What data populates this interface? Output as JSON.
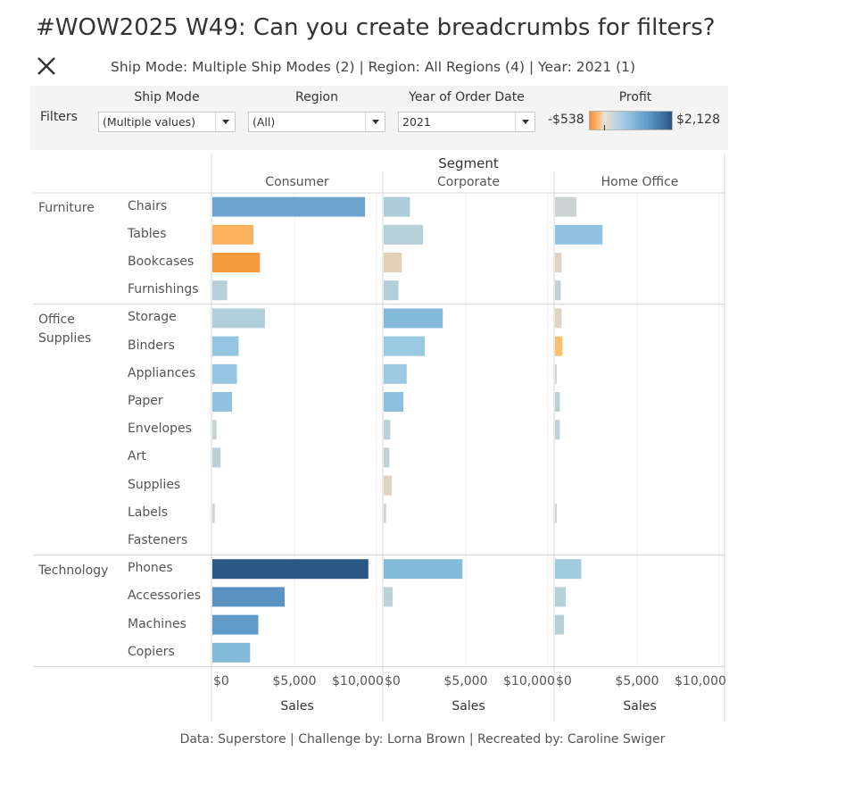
{
  "title": "#WOW2025 W49: Can you create breadcrumbs for filters?",
  "breadcrumb": "Ship Mode: Multiple Ship Modes (2) | Region: All Regions (4) | Year: 2021 (1)",
  "filters": {
    "label": "Filters",
    "ship_mode": {
      "label": "Ship Mode",
      "value": "(Multiple values)"
    },
    "region": {
      "label": "Region",
      "value": "(All)"
    },
    "year": {
      "label": "Year of Order Date",
      "value": "2021"
    },
    "profit": {
      "label": "Profit",
      "min_label": "-$538",
      "max_label": "$2,128"
    }
  },
  "colors": {
    "negative": "#f28e2b",
    "neutral": "#ddd5c8",
    "positive": "#2a5885",
    "background": "#f4f4f4"
  },
  "footer": "Data: Superstore | Challenge by: Lorna Brown | Recreated by: Caroline Swiger",
  "chart_data": {
    "type": "bar",
    "orientation": "horizontal",
    "column_header": "Segment",
    "segments": [
      "Consumer",
      "Corporate",
      "Home Office"
    ],
    "xlabel": "Sales",
    "x_ticks": [
      "$0",
      "$5,000",
      "$10,000"
    ],
    "xlim": [
      0,
      10000
    ],
    "color_by": "Profit",
    "color_range": [
      -538,
      2128
    ],
    "categories": [
      {
        "name": "Furniture",
        "subcategories": [
          "Chairs",
          "Tables",
          "Bookcases",
          "Furnishings"
        ]
      },
      {
        "name": "Office Supplies",
        "subcategories": [
          "Storage",
          "Binders",
          "Appliances",
          "Paper",
          "Envelopes",
          "Art",
          "Supplies",
          "Labels",
          "Fasteners"
        ]
      },
      {
        "name": "Technology",
        "subcategories": [
          "Phones",
          "Accessories",
          "Machines",
          "Copiers"
        ]
      }
    ],
    "series": [
      {
        "segment": "Consumer",
        "sales": [
          9300,
          2500,
          2900,
          900,
          3200,
          1600,
          1500,
          1200,
          250,
          500,
          0,
          150,
          0,
          9500,
          4400,
          2800,
          2300
        ],
        "profit": [
          1200,
          -350,
          -538,
          300,
          350,
          650,
          650,
          700,
          150,
          250,
          0,
          100,
          0,
          2128,
          1450,
          1350,
          850
        ]
      },
      {
        "segment": "Corporate",
        "sales": [
          1600,
          2400,
          1100,
          900,
          3600,
          2500,
          1400,
          1200,
          400,
          350,
          500,
          150,
          0,
          4800,
          550,
          0,
          0
        ],
        "profit": [
          400,
          300,
          -50,
          350,
          850,
          600,
          550,
          750,
          250,
          200,
          -20,
          100,
          0,
          850,
          250,
          0,
          0
        ]
      },
      {
        "segment": "Home Office",
        "sales": [
          1300,
          2900,
          400,
          350,
          400,
          450,
          50,
          300,
          300,
          0,
          0,
          50,
          0,
          1600,
          650,
          550,
          0
        ],
        "profit": [
          100,
          700,
          -20,
          200,
          -20,
          -250,
          0,
          250,
          200,
          0,
          0,
          20,
          0,
          500,
          300,
          300,
          0
        ]
      }
    ]
  }
}
